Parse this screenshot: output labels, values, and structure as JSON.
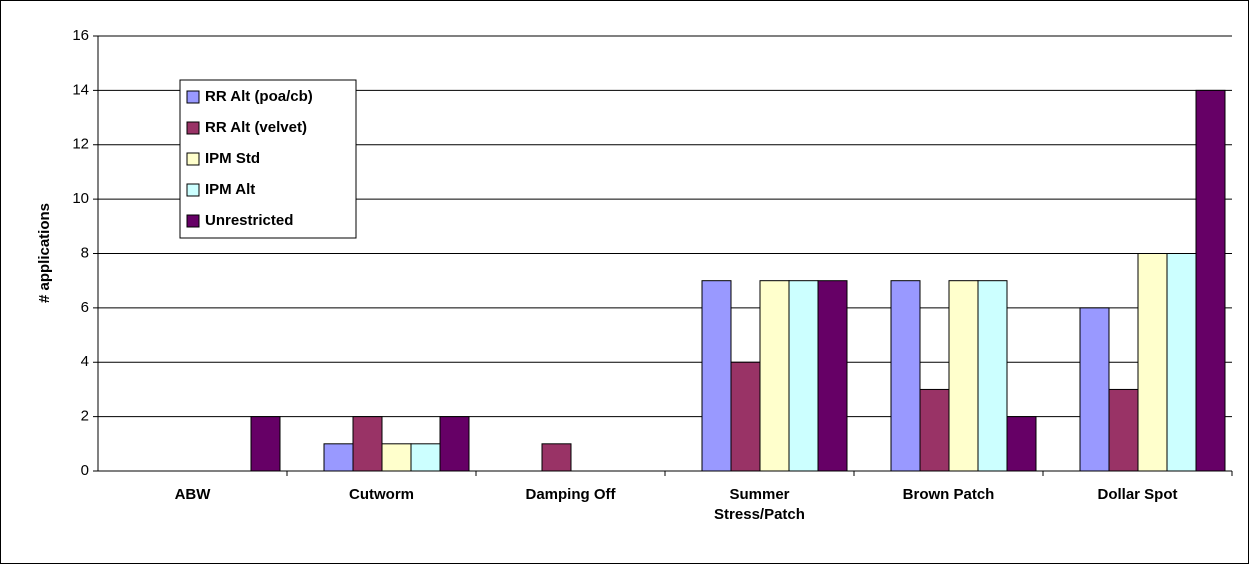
{
  "chart_data": {
    "type": "bar",
    "y_label": "# applications",
    "categories": [
      "ABW",
      "Cutworm",
      "Damping Off",
      "Summer Stress/Patch",
      "Brown Patch",
      "Dollar Spot"
    ],
    "series": [
      {
        "name": "RR Alt (poa/cb)",
        "color": "#9999ff",
        "values": [
          0,
          1,
          0,
          7,
          7,
          6
        ]
      },
      {
        "name": "RR Alt (velvet)",
        "color": "#993366",
        "values": [
          0,
          2,
          1,
          4,
          3,
          3
        ]
      },
      {
        "name": "IPM Std",
        "color": "#ffffcc",
        "values": [
          0,
          1,
          0,
          7,
          7,
          8
        ]
      },
      {
        "name": "IPM Alt",
        "color": "#ccffff",
        "values": [
          0,
          1,
          0,
          7,
          7,
          8
        ]
      },
      {
        "name": "Unrestricted",
        "color": "#660066",
        "values": [
          2,
          2,
          0,
          7,
          2,
          14
        ]
      }
    ],
    "ylim": [
      0,
      16
    ],
    "yticks": [
      0,
      2,
      4,
      6,
      8,
      10,
      12,
      14,
      16
    ],
    "grid": true,
    "legend": "upper left"
  }
}
